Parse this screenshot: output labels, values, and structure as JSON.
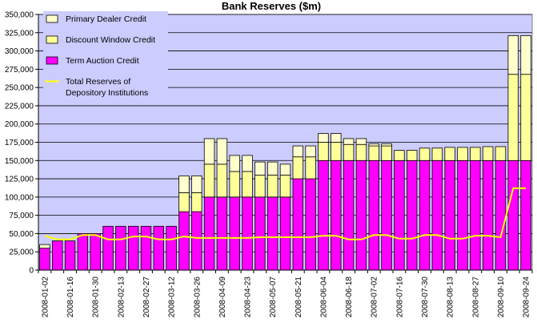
{
  "chart_data": {
    "type": "bar",
    "stacked": true,
    "title": "Bank Reserves ($m)",
    "xlabel": "",
    "ylabel": "",
    "ylim": [
      0,
      350000
    ],
    "y_ticks": [
      0,
      25000,
      50000,
      75000,
      100000,
      125000,
      150000,
      175000,
      200000,
      225000,
      250000,
      275000,
      300000,
      325000,
      350000
    ],
    "y_tick_labels": [
      "0",
      "25,000",
      "50,000",
      "75,000",
      "100,000",
      "125,000",
      "150,000",
      "175,000",
      "200,000",
      "225,000",
      "250,000",
      "275,000",
      "300,000",
      "325,000",
      "350,000"
    ],
    "grid": true,
    "legend_position": "top-left",
    "categories": [
      "2008-01-02",
      "2008-01-09",
      "2008-01-16",
      "2008-01-23",
      "2008-01-30",
      "2008-02-06",
      "2008-02-13",
      "2008-02-20",
      "2008-02-27",
      "2008-03-05",
      "2008-03-12",
      "2008-03-19",
      "2008-03-26",
      "2008-04-02",
      "2008-04-09",
      "2008-04-16",
      "2008-04-23",
      "2008-04-30",
      "2008-05-07",
      "2008-05-14",
      "2008-05-21",
      "2008-05-28",
      "2008-06-04",
      "2008-06-11",
      "2008-06-18",
      "2008-06-25",
      "2008-07-02",
      "2008-07-09",
      "2008-07-16",
      "2008-07-23",
      "2008-07-30",
      "2008-08-06",
      "2008-08-13",
      "2008-08-20",
      "2008-08-27",
      "2008-09-03",
      "2008-09-10",
      "2008-09-17",
      "2008-09-24"
    ],
    "x_tick_labels": [
      "2008-01-02",
      "2008-01-16",
      "2008-01-30",
      "2008-02-13",
      "2008-02-27",
      "2008-03-12",
      "2008-03-26",
      "2008-04-09",
      "2008-04-23",
      "2008-05-07",
      "2008-05-21",
      "2008-06-04",
      "2008-06-18",
      "2008-07-02",
      "2008-07-16",
      "2008-07-30",
      "2008-08-13",
      "2008-08-27",
      "2008-09-10",
      "2008-09-24"
    ],
    "series": [
      {
        "name": "Term Auction Credit",
        "kind": "bar",
        "color": "#ff00ff",
        "values": [
          30000,
          40000,
          40000,
          50000,
          50000,
          60000,
          60000,
          60000,
          60000,
          60000,
          60000,
          80000,
          80000,
          100000,
          100000,
          100000,
          100000,
          100000,
          100000,
          100000,
          125000,
          125000,
          150000,
          150000,
          150000,
          150000,
          150000,
          150000,
          150000,
          150000,
          150000,
          150000,
          150000,
          150000,
          150000,
          150000,
          150000,
          150000,
          150000
        ]
      },
      {
        "name": "Discount Window Credit",
        "kind": "bar",
        "color": "#ffff99",
        "values": [
          0,
          0,
          0,
          0,
          0,
          0,
          0,
          0,
          0,
          0,
          0,
          26000,
          26000,
          45000,
          45000,
          35000,
          35000,
          30000,
          30000,
          30000,
          30000,
          30000,
          25000,
          25000,
          22000,
          22000,
          20000,
          20000,
          14000,
          14000,
          17000,
          17000,
          18000,
          18000,
          18000,
          19000,
          19000,
          118000,
          118000
        ]
      },
      {
        "name": "Primary Dealer Credit",
        "kind": "bar",
        "color": "#ffffcc",
        "values": [
          5000,
          0,
          0,
          0,
          0,
          0,
          0,
          0,
          0,
          0,
          0,
          23000,
          23000,
          35000,
          35000,
          22000,
          22000,
          18000,
          18000,
          15000,
          15000,
          15000,
          12000,
          12000,
          8000,
          8000,
          3000,
          3000,
          0,
          0,
          0,
          0,
          0,
          0,
          0,
          0,
          0,
          53000,
          53000
        ]
      },
      {
        "name": "Total Reserves of Depository Institutions",
        "kind": "line",
        "color": "#ffff00",
        "values": [
          47000,
          42000,
          42000,
          48000,
          48000,
          42000,
          42000,
          46000,
          46000,
          42000,
          42000,
          46000,
          44000,
          44000,
          44000,
          44000,
          44000,
          45000,
          45000,
          45000,
          45000,
          45000,
          47000,
          47000,
          42000,
          42000,
          48000,
          48000,
          43000,
          43000,
          48000,
          48000,
          43000,
          43000,
          47000,
          47000,
          45000,
          112000,
          112000
        ]
      }
    ],
    "legend_entries": [
      {
        "label_lines": [
          "Primary Dealer Credit"
        ],
        "series": "Primary Dealer Credit"
      },
      {
        "label_lines": [
          "Discount Window Credit"
        ],
        "series": "Discount Window Credit"
      },
      {
        "label_lines": [
          "Term Auction Credit"
        ],
        "series": "Term Auction Credit"
      },
      {
        "label_lines": [
          "Total Reserves of",
          "Depository Institutions"
        ],
        "series": "Total Reserves of Depository Institutions"
      }
    ],
    "colors": {
      "plot_background": "#ccccff",
      "gridline": "#000000",
      "bar_outline": "#000000"
    }
  }
}
